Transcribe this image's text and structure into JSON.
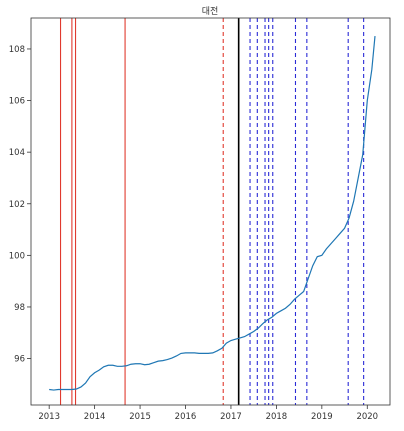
{
  "chart_data": {
    "type": "line",
    "title": "대전",
    "xlabel": "",
    "ylabel": "",
    "xlim": [
      2012.6,
      2020.5
    ],
    "ylim": [
      94.2,
      109.2
    ],
    "x_ticks": [
      {
        "value": 2013,
        "label": "2013"
      },
      {
        "value": 2014,
        "label": "2014"
      },
      {
        "value": 2015,
        "label": "2015"
      },
      {
        "value": 2016,
        "label": "2016"
      },
      {
        "value": 2017,
        "label": "2017"
      },
      {
        "value": 2018,
        "label": "2018"
      },
      {
        "value": 2019,
        "label": "2019"
      },
      {
        "value": 2020,
        "label": "2020"
      }
    ],
    "y_ticks": [
      {
        "value": 96,
        "label": "96"
      },
      {
        "value": 98,
        "label": "98"
      },
      {
        "value": 100,
        "label": "100"
      },
      {
        "value": 102,
        "label": "102"
      },
      {
        "value": 104,
        "label": "104"
      },
      {
        "value": 106,
        "label": "106"
      },
      {
        "value": 108,
        "label": "108"
      }
    ],
    "grid": false,
    "series": [
      {
        "color": "#1f77b4",
        "points": [
          [
            2013.0,
            94.8
          ],
          [
            2013.1,
            94.78
          ],
          [
            2013.2,
            94.8
          ],
          [
            2013.3,
            94.8
          ],
          [
            2013.4,
            94.8
          ],
          [
            2013.5,
            94.8
          ],
          [
            2013.6,
            94.82
          ],
          [
            2013.7,
            94.9
          ],
          [
            2013.8,
            95.05
          ],
          [
            2013.9,
            95.3
          ],
          [
            2014.0,
            95.45
          ],
          [
            2014.1,
            95.55
          ],
          [
            2014.2,
            95.68
          ],
          [
            2014.3,
            95.74
          ],
          [
            2014.4,
            95.74
          ],
          [
            2014.5,
            95.7
          ],
          [
            2014.6,
            95.7
          ],
          [
            2014.7,
            95.72
          ],
          [
            2014.8,
            95.78
          ],
          [
            2014.9,
            95.8
          ],
          [
            2015.0,
            95.8
          ],
          [
            2015.1,
            95.76
          ],
          [
            2015.2,
            95.78
          ],
          [
            2015.3,
            95.84
          ],
          [
            2015.4,
            95.9
          ],
          [
            2015.5,
            95.92
          ],
          [
            2015.6,
            95.96
          ],
          [
            2015.7,
            96.02
          ],
          [
            2015.8,
            96.1
          ],
          [
            2015.9,
            96.2
          ],
          [
            2016.0,
            96.22
          ],
          [
            2016.1,
            96.22
          ],
          [
            2016.2,
            96.22
          ],
          [
            2016.3,
            96.2
          ],
          [
            2016.4,
            96.2
          ],
          [
            2016.5,
            96.2
          ],
          [
            2016.6,
            96.22
          ],
          [
            2016.7,
            96.3
          ],
          [
            2016.8,
            96.4
          ],
          [
            2016.9,
            96.6
          ],
          [
            2017.0,
            96.7
          ],
          [
            2017.1,
            96.75
          ],
          [
            2017.2,
            96.8
          ],
          [
            2017.3,
            96.85
          ],
          [
            2017.4,
            96.95
          ],
          [
            2017.5,
            97.05
          ],
          [
            2017.6,
            97.18
          ],
          [
            2017.7,
            97.35
          ],
          [
            2017.8,
            97.5
          ],
          [
            2017.9,
            97.6
          ],
          [
            2018.0,
            97.75
          ],
          [
            2018.1,
            97.85
          ],
          [
            2018.2,
            97.95
          ],
          [
            2018.3,
            98.1
          ],
          [
            2018.4,
            98.3
          ],
          [
            2018.5,
            98.45
          ],
          [
            2018.6,
            98.6
          ],
          [
            2018.7,
            99.1
          ],
          [
            2018.8,
            99.6
          ],
          [
            2018.9,
            99.95
          ],
          [
            2019.0,
            100.0
          ],
          [
            2019.1,
            100.25
          ],
          [
            2019.2,
            100.45
          ],
          [
            2019.3,
            100.65
          ],
          [
            2019.4,
            100.85
          ],
          [
            2019.5,
            101.05
          ],
          [
            2019.6,
            101.45
          ],
          [
            2019.7,
            102.1
          ],
          [
            2019.8,
            103.0
          ],
          [
            2019.9,
            103.9
          ],
          [
            2020.0,
            106.0
          ],
          [
            2020.1,
            107.2
          ],
          [
            2020.17,
            108.5
          ]
        ]
      }
    ],
    "vlines": [
      {
        "x": 2013.25,
        "color": "#e03a2f",
        "style": "solid"
      },
      {
        "x": 2013.5,
        "color": "#e03a2f",
        "style": "solid"
      },
      {
        "x": 2013.58,
        "color": "#e03a2f",
        "style": "solid"
      },
      {
        "x": 2014.67,
        "color": "#e03a2f",
        "style": "solid"
      },
      {
        "x": 2016.83,
        "color": "#e03a2f",
        "style": "dashed"
      },
      {
        "x": 2017.17,
        "color": "#000000",
        "style": "solid"
      },
      {
        "x": 2017.42,
        "color": "#2b2bd6",
        "style": "dashed"
      },
      {
        "x": 2017.58,
        "color": "#2b2bd6",
        "style": "dashed"
      },
      {
        "x": 2017.75,
        "color": "#2b2bd6",
        "style": "dashed"
      },
      {
        "x": 2017.83,
        "color": "#2b2bd6",
        "style": "dashed"
      },
      {
        "x": 2017.92,
        "color": "#2b2bd6",
        "style": "dashed"
      },
      {
        "x": 2018.42,
        "color": "#2b2bd6",
        "style": "dashed"
      },
      {
        "x": 2018.67,
        "color": "#2b2bd6",
        "style": "dashed"
      },
      {
        "x": 2019.58,
        "color": "#2b2bd6",
        "style": "dashed"
      },
      {
        "x": 2019.92,
        "color": "#2b2bd6",
        "style": "dashed"
      }
    ]
  }
}
